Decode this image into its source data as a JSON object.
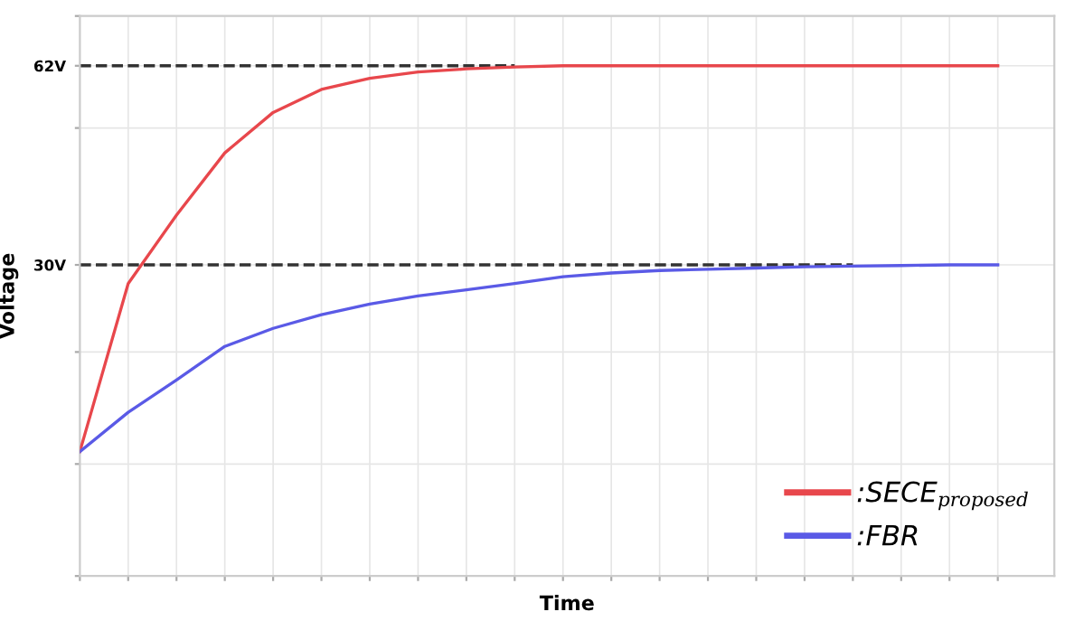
{
  "chart_data": {
    "type": "line",
    "xlabel": "Time",
    "ylabel": "Voltage",
    "categories": [
      null,
      null,
      null,
      null,
      null,
      null,
      null,
      null,
      null,
      null,
      null,
      null,
      null,
      null,
      null,
      null,
      null,
      null,
      null,
      null
    ],
    "ylim": [
      -20,
      70
    ],
    "yticks": [
      {
        "value": -20,
        "label": null
      },
      {
        "value": -2,
        "label": null
      },
      {
        "value": 16,
        "label": null
      },
      {
        "value": 30,
        "label": "30V"
      },
      {
        "value": 52,
        "label": null
      },
      {
        "value": 62,
        "label": "62V"
      },
      {
        "value": 70,
        "label": null
      }
    ],
    "grid": true,
    "legend": "bottom right",
    "marker": "none",
    "line_style": "solid",
    "ref_lines": [
      {
        "axis": "y",
        "value": 62,
        "color": "#333333",
        "line_style": "dashed"
      },
      {
        "axis": "y",
        "value": 30,
        "color": "#333333",
        "line_style": "dashed"
      }
    ],
    "series": [
      {
        "name": ":SECE$_{proposed}$",
        "color": "#e8474c",
        "values": [
          0,
          27,
          38,
          48,
          54.5,
          58.2,
          60,
          61,
          61.5,
          61.8,
          62,
          62,
          62,
          62,
          62,
          62,
          62,
          62,
          62,
          62
        ]
      },
      {
        "name": ":FBR",
        "color": "#5a5ae6",
        "values": [
          0,
          6.3,
          11.5,
          16.9,
          19.8,
          22,
          23.7,
          25,
          26,
          27,
          28.1,
          28.7,
          29.1,
          29.3,
          29.5,
          29.7,
          29.8,
          29.9,
          30,
          30
        ]
      }
    ]
  }
}
